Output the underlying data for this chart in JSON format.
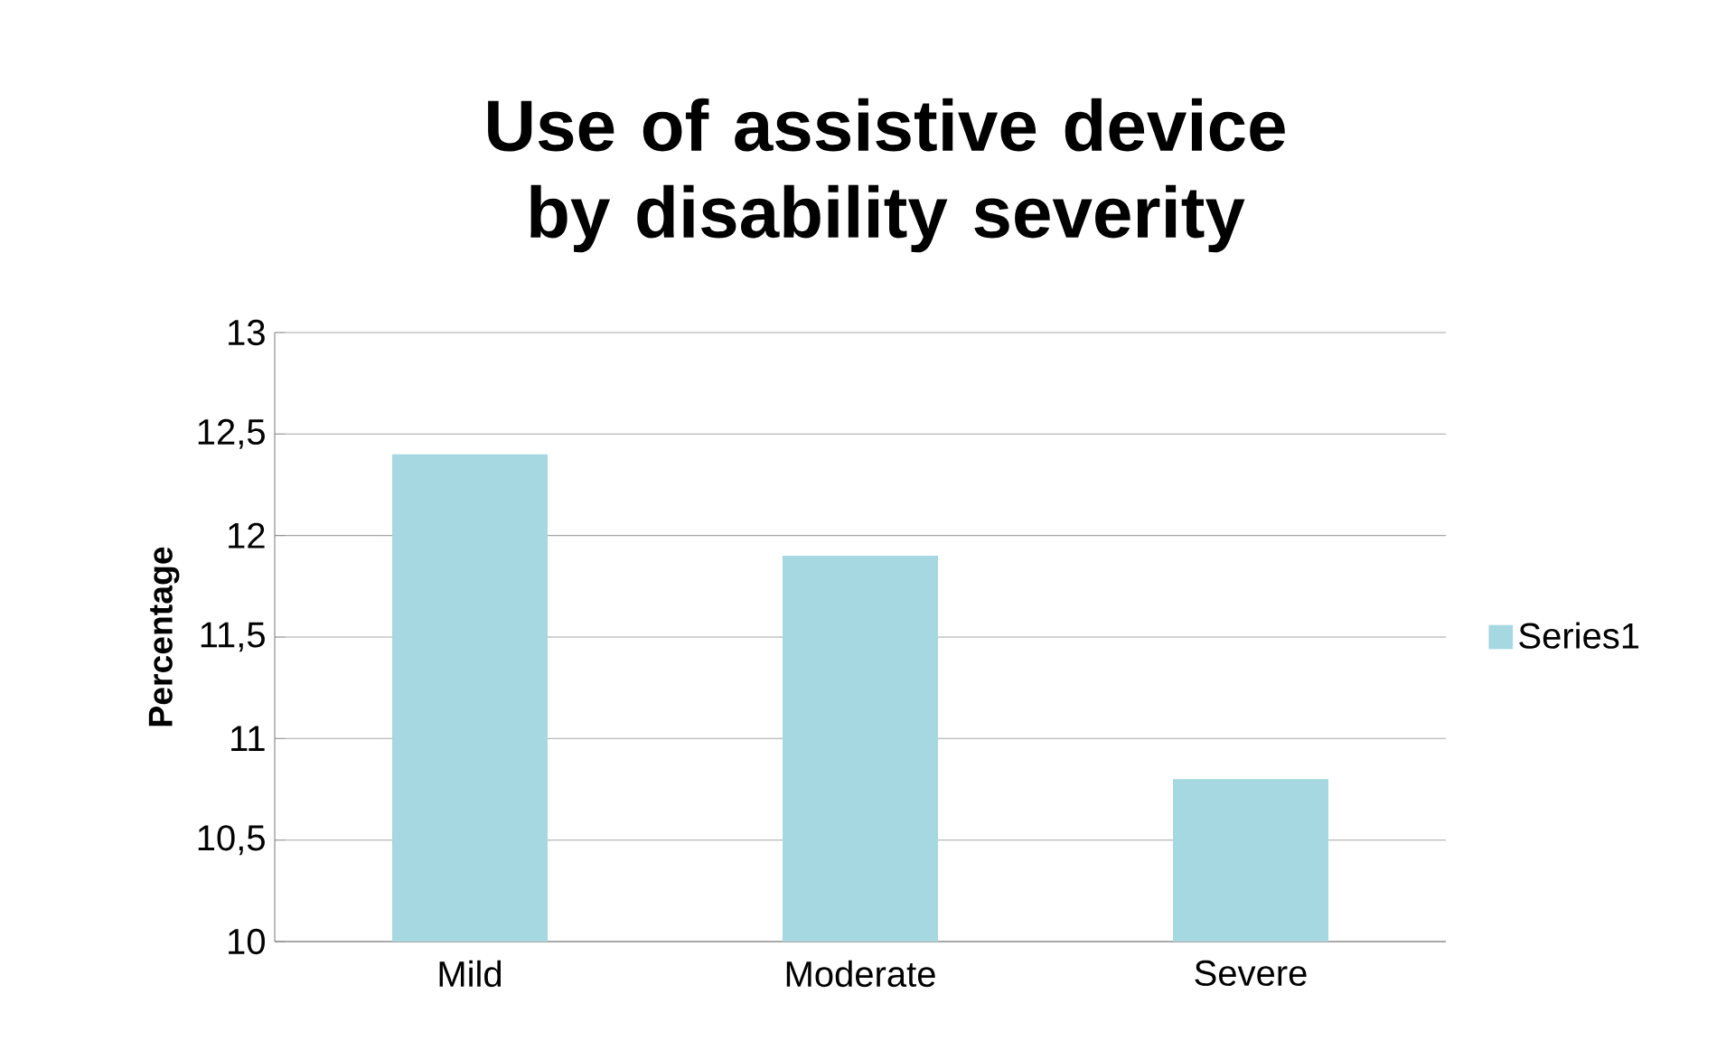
{
  "chart_data": {
    "type": "bar",
    "title": "Use of assistive device by disability severity",
    "ylabel": "Percentage",
    "categories": [
      "Mild",
      "Moderate",
      "Severe"
    ],
    "series": [
      {
        "name": "Series1",
        "color": "#a5d8e0",
        "values": [
          12.4,
          11.9,
          10.8
        ]
      }
    ],
    "ylim": [
      10,
      13
    ],
    "yticks": [
      10,
      {
        "value": 10.5,
        "label": "10,5"
      },
      11,
      {
        "value": 11.5,
        "label": "11,5"
      },
      12,
      {
        "value": 12.5,
        "label": "12,5"
      },
      13
    ],
    "grid": "y",
    "legend": "right"
  }
}
